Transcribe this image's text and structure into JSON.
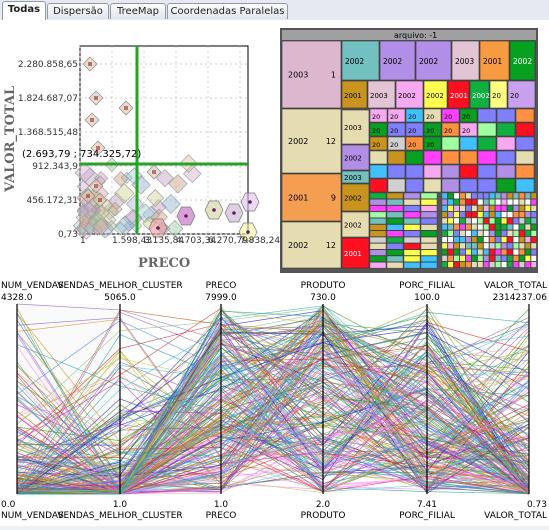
{
  "tabs": [
    {
      "label": "Todas",
      "active": true
    },
    {
      "label": "Dispersão",
      "active": false
    },
    {
      "label": "TreeMap",
      "active": false
    },
    {
      "label": "Coordenadas Paralelas",
      "active": false
    }
  ],
  "scatter": {
    "ylabel": "VALOR_TOTAL",
    "xlabel": "PRECO",
    "yticks": [
      "2.280.858,65",
      "1.824.687,07",
      "1.368.515,48",
      "912.343,9",
      "456.172,31",
      "0,73"
    ],
    "xticks": [
      "1",
      "1.598,43",
      "3.135,84",
      "4.703,34",
      "6.270,79",
      "7.838,24"
    ],
    "tooltip": "(2.693,79 ; 734.325,72)"
  },
  "treemap": {
    "title": "arquivo: -1",
    "left_cells": [
      {
        "year": "2003",
        "count": "1",
        "color": "#dcb7cd"
      },
      {
        "year": "2002",
        "count": "12",
        "color": "#e6dcb2"
      },
      {
        "year": "2001",
        "count": "9",
        "color": "#f49e52"
      },
      {
        "year": "2002",
        "count": "12",
        "color": "#e6dcb2"
      }
    ],
    "top_cells": [
      {
        "label": "2002",
        "color": "#73c0c0"
      },
      {
        "label": "2002",
        "color": "#b28fe6"
      },
      {
        "label": "2002",
        "color": "#b28fe6"
      },
      {
        "label": "2003",
        "color": "#e2c4d5"
      },
      {
        "label": "2001",
        "color": "#f79b40"
      },
      {
        "label": "2002",
        "color": "#08a020"
      }
    ],
    "row2_cells": [
      {
        "label": "2001",
        "color": "#c8941e"
      },
      {
        "label": "2003",
        "color": "#e2c4d5"
      },
      {
        "label": "2002",
        "color": "#f6a8f0"
      },
      {
        "label": "2002",
        "color": "#ffff50"
      },
      {
        "label": "2001",
        "color": "#ff1020"
      },
      {
        "label": "2002",
        "color": "#10b040"
      },
      {
        "label": "20",
        "color": "#ffff80"
      },
      {
        "label": "20",
        "color": "#c8a0f0"
      }
    ],
    "mid_labels": [
      "2003",
      "2002",
      "2003",
      "2002",
      "2002",
      "2001"
    ],
    "small_labels": [
      "20",
      "20",
      "20",
      "20",
      "20",
      "20",
      "20",
      "20",
      "20",
      "20",
      "20",
      "20",
      "20",
      "20",
      "20",
      "20"
    ]
  },
  "parallel": {
    "axes": [
      {
        "name": "NUM_VENDAS",
        "max": "4328.0",
        "min": "0.0"
      },
      {
        "name": "VENDAS_MELHOR_CLUSTER",
        "max": "5065.0",
        "min": "1.0"
      },
      {
        "name": "PRECO",
        "max": "7999.0",
        "min": "1.0"
      },
      {
        "name": "PRODUTO",
        "max": "730.0",
        "min": "2.0"
      },
      {
        "name": "PORC_FILIAL",
        "max": "100.0",
        "min": "7.41"
      },
      {
        "name": "VALOR_TOTAL",
        "max": "2314237.06",
        "min": "0.73"
      }
    ]
  }
}
